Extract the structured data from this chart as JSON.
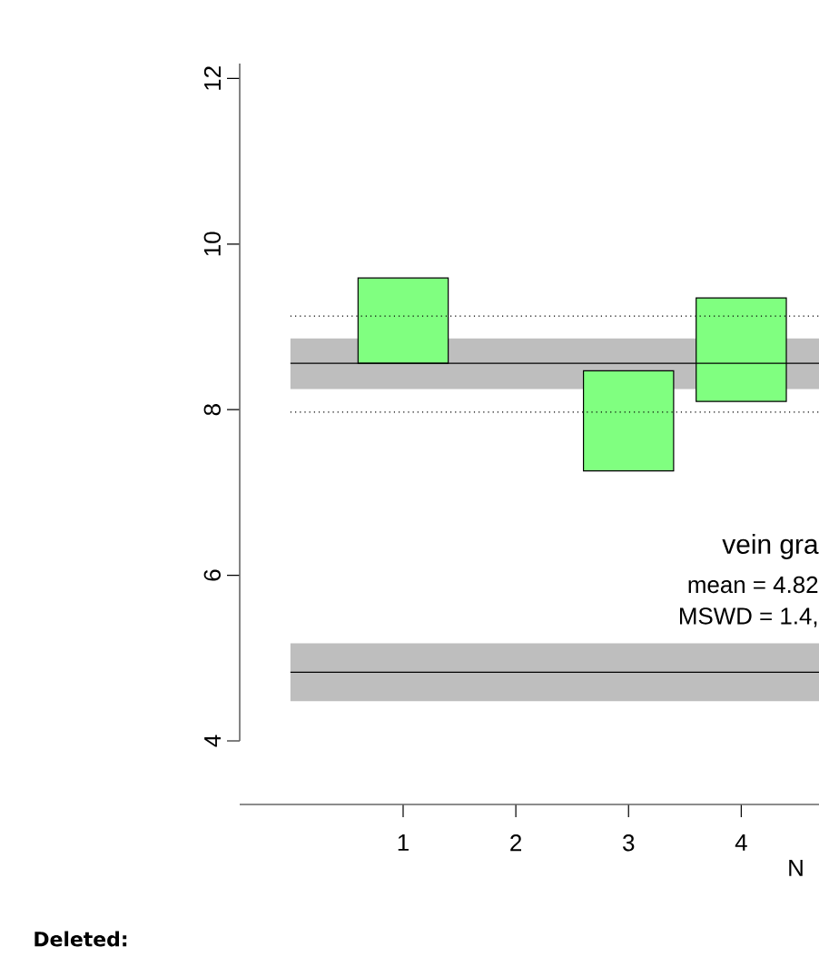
{
  "chart_data": {
    "type": "bar",
    "categories": [
      "1",
      "2",
      "3",
      "4"
    ],
    "values": [
      1.03,
      null,
      1.21,
      1.25
    ],
    "base": [
      8.56,
      null,
      7.26,
      8.1
    ],
    "color": "#80ff80",
    "xlabel": "N",
    "ylim": [
      4,
      12.18
    ],
    "yticks": [
      4,
      6,
      8,
      10,
      12
    ],
    "ref_lines": [
      {
        "axis": "y",
        "value": 8.56,
        "line_style": "solid"
      },
      {
        "axis": "y",
        "value": 9.13,
        "line_style": "dotted"
      },
      {
        "axis": "y",
        "value": 7.97,
        "line_style": "dotted"
      },
      {
        "axis": "y",
        "value": 4.83,
        "line_style": "solid"
      }
    ],
    "bands": [
      {
        "axis": "y",
        "from": 8.25,
        "to": 8.86,
        "color": "#bebebe"
      },
      {
        "axis": "y",
        "from": 4.48,
        "to": 5.18,
        "color": "#bebebe"
      }
    ],
    "annotations": [
      "vein gra",
      "mean = 4.82",
      "MSWD = 1.4,",
      "Deleted:"
    ],
    "grid": false
  }
}
